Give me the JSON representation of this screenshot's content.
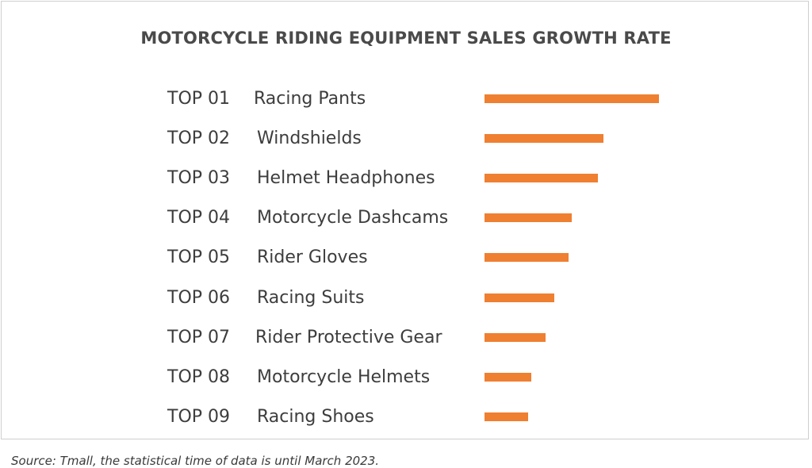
{
  "chart_data": {
    "type": "bar",
    "orientation": "horizontal",
    "title": "MOTORCYCLE RIDING EQUIPMENT SALES GROWTH RATE",
    "ranks": [
      "TOP 01",
      "TOP 02",
      "TOP 03",
      "TOP 04",
      "TOP 05",
      "TOP 06",
      "TOP 07",
      "TOP 08",
      "TOP 09"
    ],
    "categories": [
      "Racing Pants",
      "Windshields",
      "Helmet Headphones",
      "Motorcycle Dashcams",
      "Rider Gloves",
      "Racing Suits",
      "Rider Protective Gear",
      "Motorcycle Helmets",
      "Racing Shoes"
    ],
    "values": [
      100,
      68,
      65,
      50,
      48,
      40,
      35,
      27,
      25
    ],
    "axes_shown": false,
    "grid": false,
    "bar_color": "#ef7f31"
  },
  "footer": {
    "source": "Source: Tmall, the statistical time of data is until March 2023."
  }
}
